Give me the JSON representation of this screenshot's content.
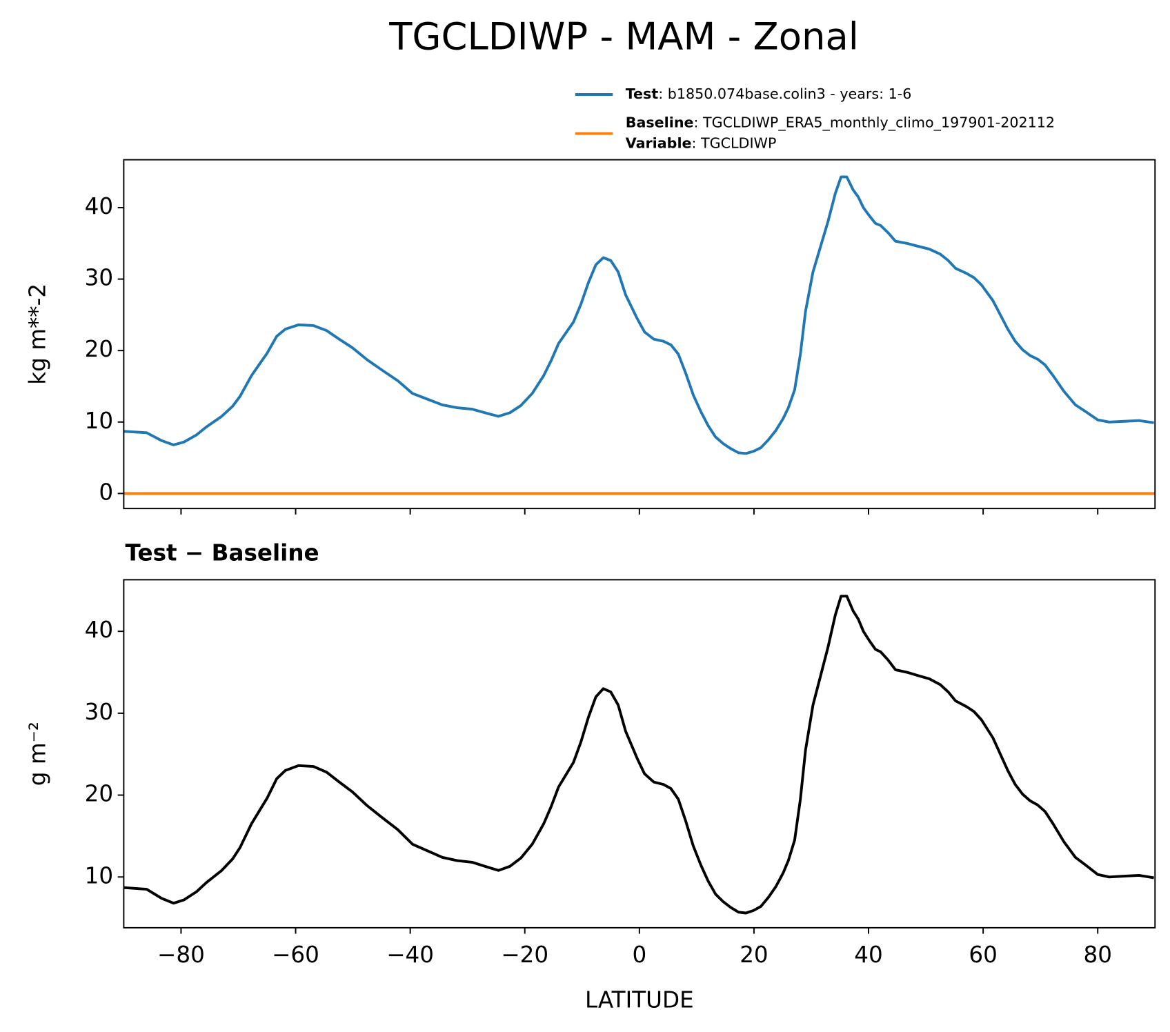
{
  "chart_data": [
    {
      "type": "line",
      "title": "TGCLDIWP - MAM - Zonal",
      "ylabel": "kg m**-2",
      "x": [
        -90,
        -86,
        -83.4,
        -81.3,
        -79.5,
        -77.3,
        -75.6,
        -72.9,
        -71,
        -69.7,
        -67.7,
        -66.4,
        -65,
        -63.3,
        -61.8,
        -59.5,
        -56.9,
        -54.6,
        -52.4,
        -50.1,
        -47.5,
        -44.8,
        -42.2,
        -39.6,
        -37,
        -34.4,
        -31.8,
        -29.2,
        -26.5,
        -24.6,
        -22.6,
        -20.7,
        -18.7,
        -16.7,
        -15.4,
        -14.1,
        -12.8,
        -11.5,
        -10.2,
        -8.9,
        -7.6,
        -6.3,
        -5,
        -3.7,
        -2.4,
        -0.4,
        0.9,
        2.5,
        4.2,
        5.5,
        6.8,
        8.1,
        9.4,
        10.7,
        12,
        13.3,
        14.6,
        15.9,
        17.3,
        18.6,
        19.9,
        21.2,
        22.5,
        23.8,
        25.1,
        26,
        27.1,
        28.1,
        29,
        30.3,
        31.6,
        32.9,
        34.2,
        35.2,
        36.2,
        37.3,
        38.2,
        39.1,
        40.1,
        41.2,
        42.1,
        43.4,
        44.7,
        46.7,
        48.6,
        50.6,
        52.5,
        53.9,
        55.2,
        57.1,
        58.4,
        59.7,
        61.7,
        63,
        64.3,
        65.6,
        66.9,
        68.2,
        69.5,
        70.8,
        72.2,
        74.1,
        76.1,
        78,
        80,
        82,
        84.6,
        87.2,
        89.8
      ],
      "series": [
        {
          "name": "Test",
          "detail": ": b1850.074base.colin3 - years: 1-6",
          "color": "#1f77b4",
          "values": [
            8.7,
            8.5,
            7.4,
            6.8,
            7.2,
            8.2,
            9.3,
            10.8,
            12.2,
            13.6,
            16.5,
            18.0,
            19.6,
            22.0,
            23.0,
            23.6,
            23.5,
            22.8,
            21.6,
            20.4,
            18.7,
            17.2,
            15.8,
            14.0,
            13.2,
            12.4,
            12.0,
            11.8,
            11.2,
            10.8,
            11.3,
            12.3,
            14.0,
            16.5,
            18.6,
            21.0,
            22.5,
            24.0,
            26.5,
            29.5,
            32.0,
            33.0,
            32.6,
            31.0,
            27.8,
            24.5,
            22.6,
            21.6,
            21.3,
            20.8,
            19.5,
            16.8,
            13.8,
            11.5,
            9.5,
            7.9,
            7.0,
            6.3,
            5.7,
            5.6,
            5.9,
            6.4,
            7.5,
            8.8,
            10.5,
            12.0,
            14.5,
            19.5,
            25.5,
            31.0,
            34.5,
            38.0,
            42.0,
            44.3,
            44.3,
            42.5,
            41.5,
            40.0,
            38.9,
            37.8,
            37.5,
            36.5,
            35.3,
            35.0,
            34.6,
            34.2,
            33.5,
            32.6,
            31.5,
            30.8,
            30.2,
            29.2,
            27.0,
            25.0,
            23.0,
            21.3,
            20.1,
            19.3,
            18.8,
            18.0,
            16.5,
            14.3,
            12.4,
            11.4,
            10.3,
            10.0,
            10.1,
            10.2,
            9.9
          ]
        },
        {
          "name": "Baseline",
          "detail": ": TGCLDIWP_ERA5_monthly_climo_197901-202112",
          "color": "#ff7f0e",
          "x": [
            -90,
            90
          ],
          "values": [
            0,
            0
          ]
        }
      ],
      "legend_extra": {
        "name": "Variable",
        "detail": ": TGCLDIWP"
      },
      "xlim": [
        -90,
        90
      ],
      "xticks": [
        -80,
        -60,
        -40,
        -20,
        0,
        20,
        40,
        60,
        80
      ],
      "show_xtick_labels": false,
      "ylim": [
        -2.1,
        46.7
      ],
      "yticks": [
        0,
        10,
        20,
        30,
        40
      ]
    },
    {
      "type": "line",
      "title": "Test − Baseline",
      "ylabel": "g m⁻²",
      "xlabel": "LATITUDE",
      "x": [
        -90,
        -86,
        -83.4,
        -81.3,
        -79.5,
        -77.3,
        -75.6,
        -72.9,
        -71,
        -69.7,
        -67.7,
        -66.4,
        -65,
        -63.3,
        -61.8,
        -59.5,
        -56.9,
        -54.6,
        -52.4,
        -50.1,
        -47.5,
        -44.8,
        -42.2,
        -39.6,
        -37,
        -34.4,
        -31.8,
        -29.2,
        -26.5,
        -24.6,
        -22.6,
        -20.7,
        -18.7,
        -16.7,
        -15.4,
        -14.1,
        -12.8,
        -11.5,
        -10.2,
        -8.9,
        -7.6,
        -6.3,
        -5,
        -3.7,
        -2.4,
        -0.4,
        0.9,
        2.5,
        4.2,
        5.5,
        6.8,
        8.1,
        9.4,
        10.7,
        12,
        13.3,
        14.6,
        15.9,
        17.3,
        18.6,
        19.9,
        21.2,
        22.5,
        23.8,
        25.1,
        26,
        27.1,
        28.1,
        29,
        30.3,
        31.6,
        32.9,
        34.2,
        35.2,
        36.2,
        37.3,
        38.2,
        39.1,
        40.1,
        41.2,
        42.1,
        43.4,
        44.7,
        46.7,
        48.6,
        50.6,
        52.5,
        53.9,
        55.2,
        57.1,
        58.4,
        59.7,
        61.7,
        63,
        64.3,
        65.6,
        66.9,
        68.2,
        69.5,
        70.8,
        72.2,
        74.1,
        76.1,
        78,
        80,
        82,
        84.6,
        87.2,
        89.8
      ],
      "series": [
        {
          "color": "#000000",
          "values": [
            8.7,
            8.5,
            7.4,
            6.8,
            7.2,
            8.2,
            9.3,
            10.8,
            12.2,
            13.6,
            16.5,
            18.0,
            19.6,
            22.0,
            23.0,
            23.6,
            23.5,
            22.8,
            21.6,
            20.4,
            18.7,
            17.2,
            15.8,
            14.0,
            13.2,
            12.4,
            12.0,
            11.8,
            11.2,
            10.8,
            11.3,
            12.3,
            14.0,
            16.5,
            18.6,
            21.0,
            22.5,
            24.0,
            26.5,
            29.5,
            32.0,
            33.0,
            32.6,
            31.0,
            27.8,
            24.5,
            22.6,
            21.6,
            21.3,
            20.8,
            19.5,
            16.8,
            13.8,
            11.5,
            9.5,
            7.9,
            7.0,
            6.3,
            5.7,
            5.6,
            5.9,
            6.4,
            7.5,
            8.8,
            10.5,
            12.0,
            14.5,
            19.5,
            25.5,
            31.0,
            34.5,
            38.0,
            42.0,
            44.3,
            44.3,
            42.5,
            41.5,
            40.0,
            38.9,
            37.8,
            37.5,
            36.5,
            35.3,
            35.0,
            34.6,
            34.2,
            33.5,
            32.6,
            31.5,
            30.8,
            30.2,
            29.2,
            27.0,
            25.0,
            23.0,
            21.3,
            20.1,
            19.3,
            18.8,
            18.0,
            16.5,
            14.3,
            12.4,
            11.4,
            10.3,
            10.0,
            10.1,
            10.2,
            9.9
          ]
        }
      ],
      "xlim": [
        -90,
        90
      ],
      "xticks": [
        {
          "value": -80,
          "label": "−80"
        },
        {
          "value": -60,
          "label": "−60"
        },
        {
          "value": -40,
          "label": "−40"
        },
        {
          "value": -20,
          "label": "−20"
        },
        0,
        20,
        40,
        60,
        80
      ],
      "ylim": [
        3.8,
        46.3
      ],
      "yticks": [
        10,
        20,
        30,
        40
      ]
    }
  ]
}
